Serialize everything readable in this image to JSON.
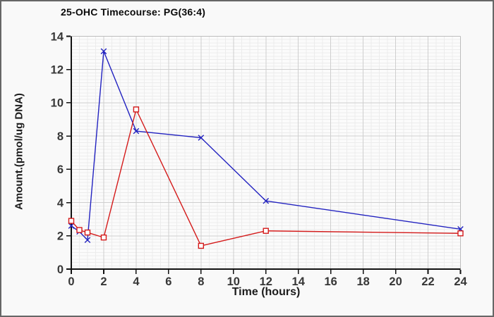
{
  "chart_data": {
    "type": "line",
    "title": "25-OHC Timecourse: PG(36:4)",
    "xlabel": "Time (hours)",
    "ylabel": "Amount.(pmol/ug DNA)",
    "xlim": [
      0,
      24
    ],
    "ylim": [
      0,
      14
    ],
    "x_ticks": [
      0,
      2,
      4,
      6,
      8,
      10,
      12,
      14,
      16,
      18,
      20,
      22,
      24
    ],
    "y_ticks": [
      0,
      2,
      4,
      6,
      8,
      10,
      12,
      14
    ],
    "x_minor_step": 0.5,
    "y_minor_step": 0.2,
    "grid": true,
    "legend_position": "none",
    "series": [
      {
        "name": "blue-x-series",
        "marker": "x",
        "color": "#2222c0",
        "x": [
          0,
          0.5,
          1,
          2,
          4,
          8,
          12,
          24
        ],
        "y": [
          2.6,
          2.25,
          1.75,
          13.1,
          8.3,
          7.9,
          4.1,
          2.4
        ]
      },
      {
        "name": "red-square-series",
        "marker": "square",
        "color": "#d41a1a",
        "x": [
          0,
          0.5,
          1,
          2,
          4,
          8,
          12,
          24
        ],
        "y": [
          2.9,
          2.35,
          2.2,
          1.9,
          9.6,
          1.4,
          2.3,
          2.15
        ]
      }
    ],
    "colors": {
      "plot_bg": "#fbfbfb",
      "minor_grid": "#ececec",
      "major_grid": "#cfcfcf",
      "plot_border": "#bdbdbd",
      "axis": "#111111",
      "tick_label": "#373737"
    }
  }
}
